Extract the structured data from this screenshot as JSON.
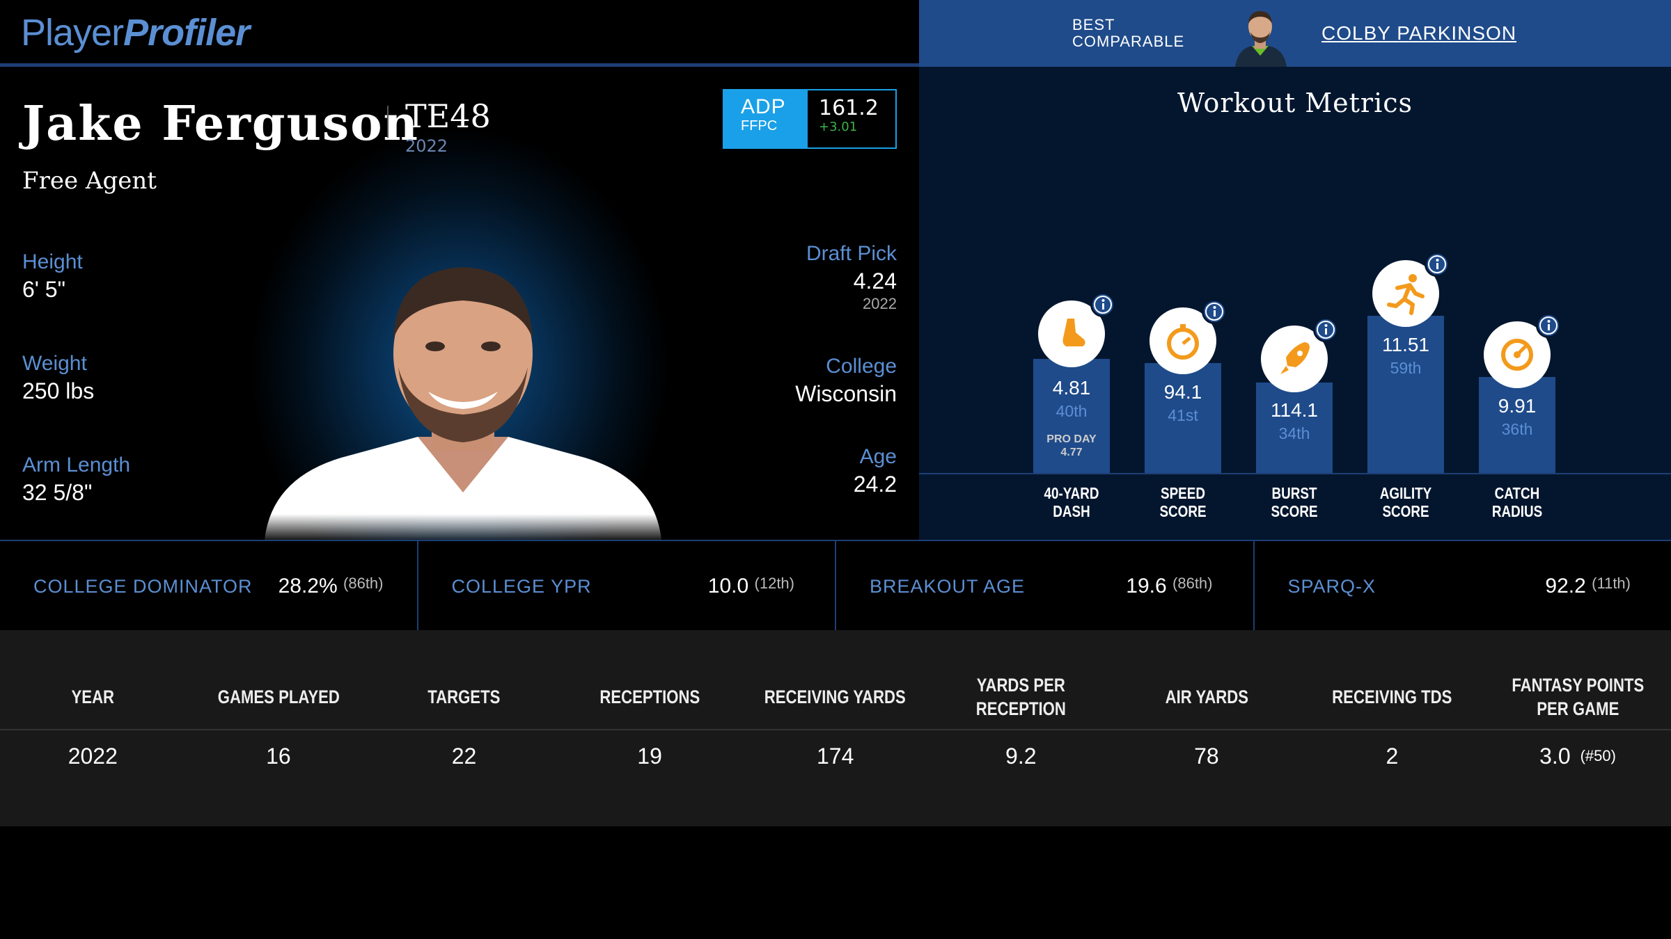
{
  "header": {
    "logo_part1": "Player",
    "logo_part2": "Profiler",
    "best_comparable_label_1": "BEST",
    "best_comparable_label_2": "COMPARABLE",
    "best_comparable_name": "COLBY PARKINSON"
  },
  "player": {
    "name": "Jake Ferguson",
    "position_rank": "TE48",
    "season": "2022",
    "team": "Free Agent",
    "adp": {
      "label": "ADP",
      "source": "FFPC",
      "value": "161.2",
      "change": "+3.01"
    },
    "height_label": "Height",
    "height": "6' 5\"",
    "weight_label": "Weight",
    "weight": "250 lbs",
    "arm_label": "Arm Length",
    "arm": "32 5/8\"",
    "draft_label": "Draft Pick",
    "draft_pick": "4.24",
    "draft_year": "2022",
    "college_label": "College",
    "college": "Wisconsin",
    "age_label": "Age",
    "age": "24.2"
  },
  "workout": {
    "title": "Workout Metrics",
    "metrics": [
      {
        "value": "4.81",
        "percentile": "40th",
        "extra1": "PRO DAY",
        "extra2": "4.77",
        "label1": "40-YARD",
        "label2": "DASH",
        "icon": "shoe-icon",
        "percentile_num": 40
      },
      {
        "value": "94.1",
        "percentile": "41st",
        "extra1": "",
        "extra2": "",
        "label1": "SPEED",
        "label2": "SCORE",
        "icon": "stopwatch-icon",
        "percentile_num": 41
      },
      {
        "value": "114.1",
        "percentile": "34th",
        "extra1": "",
        "extra2": "",
        "label1": "BURST",
        "label2": "SCORE",
        "icon": "rocket-icon",
        "percentile_num": 34
      },
      {
        "value": "11.51",
        "percentile": "59th",
        "extra1": "",
        "extra2": "",
        "label1": "AGILITY",
        "label2": "SCORE",
        "icon": "runner-icon",
        "percentile_num": 59
      },
      {
        "value": "9.91",
        "percentile": "36th",
        "extra1": "",
        "extra2": "",
        "label1": "CATCH",
        "label2": "RADIUS",
        "icon": "target-icon",
        "percentile_num": 36
      }
    ]
  },
  "advanced": [
    {
      "label": "COLLEGE DOMINATOR",
      "value": "28.2%",
      "rank": "(86th)"
    },
    {
      "label": "COLLEGE YPR",
      "value": "10.0",
      "rank": "(12th)"
    },
    {
      "label": "BREAKOUT AGE",
      "value": "19.6",
      "rank": "(86th)"
    },
    {
      "label": "SPARQ-X",
      "value": "92.2",
      "rank": "(11th)"
    }
  ],
  "table": {
    "headers": [
      "YEAR",
      "GAMES PLAYED",
      "TARGETS",
      "RECEPTIONS",
      "RECEIVING YARDS",
      "YARDS PER RECEPTION",
      "AIR YARDS",
      "RECEIVING TDS",
      "FANTASY POINTS PER GAME"
    ],
    "rows": [
      {
        "year": "2022",
        "games": "16",
        "targets": "22",
        "receptions": "19",
        "yards": "174",
        "ypr": "9.2",
        "air_yards": "78",
        "tds": "2",
        "fppg": "3.0",
        "fppg_rank": "(#50)"
      }
    ]
  }
}
